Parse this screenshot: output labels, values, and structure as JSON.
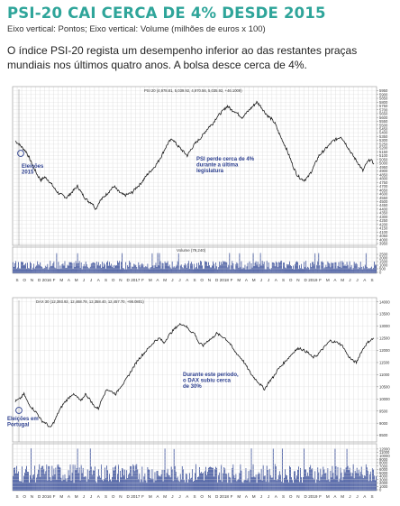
{
  "headline": "PSI-20 CAI CERCA DE 4% DESDE 2015",
  "axis_note": "Eixo vertical: Pontos; Eixo vertical: Volume (milhões de euros x 100)",
  "lead": "O índice PSI-20 regista um desempenho inferior ao das restantes praças mundiais nos últimos quatro anos. A bolsa desce cerca de 4%.",
  "colors": {
    "headline": "#2fa59a",
    "line": "#111111",
    "volume": "#3a4f9a",
    "annotation": "#2c3f8f",
    "grid": "#d9d9d9"
  },
  "chart_data": [
    {
      "type": "line",
      "title": "PSI 20 (4,978.81, 5,039.92, 4,970.56, 5,035.92, +46.1009)",
      "x_tick_labels": [
        "S",
        "O",
        "N",
        "D",
        "2016",
        "F",
        "M",
        "A",
        "M",
        "J",
        "J",
        "A",
        "S",
        "O",
        "N",
        "D",
        "2017",
        "F",
        "M",
        "A",
        "M",
        "J",
        "J",
        "A",
        "S",
        "O",
        "N",
        "D",
        "2018",
        "F",
        "M",
        "A",
        "M",
        "J",
        "J",
        "A",
        "S",
        "O",
        "N",
        "D",
        "2019",
        "F",
        "M",
        "A",
        "M",
        "J",
        "J",
        "A",
        "S"
      ],
      "y_ticks": [
        3950,
        4000,
        4050,
        4100,
        4150,
        4200,
        4250,
        4300,
        4350,
        4400,
        4450,
        4500,
        4550,
        4600,
        4650,
        4700,
        4750,
        4800,
        4850,
        4900,
        4950,
        5000,
        5050,
        5100,
        5150,
        5200,
        5250,
        5300,
        5350,
        5400,
        5450,
        5500,
        5550,
        5600,
        5650,
        5700,
        5750,
        5800,
        5850,
        5900,
        5950
      ],
      "ylim": [
        3950,
        5980
      ],
      "series": [
        {
          "values": [
            5290,
            5250,
            5200,
            5150,
            5050,
            4950,
            4850,
            4780,
            4820,
            4780,
            4720,
            4650,
            4600,
            4580,
            4550,
            4600,
            4650,
            4700,
            4620,
            4550,
            4500,
            4480,
            4400,
            4500,
            4550,
            4600,
            4650,
            4700,
            4640,
            4600,
            4580,
            4600,
            4620,
            4680,
            4720,
            4780,
            4850,
            4900,
            4950,
            5020,
            5100,
            5200,
            5280,
            5320,
            5250,
            5200,
            5150,
            5100,
            5180,
            5250,
            5300,
            5350,
            5420,
            5480,
            5520,
            5600,
            5650,
            5700,
            5750,
            5700,
            5680,
            5640,
            5600,
            5650,
            5700,
            5750,
            5800,
            5750,
            5680,
            5620,
            5580,
            5520,
            5400,
            5300,
            5200,
            5080,
            4950,
            4850,
            4800,
            4780,
            4820,
            4900,
            5000,
            5100,
            5150,
            5200,
            5250,
            5300,
            5320,
            5350,
            5280,
            5200,
            5120,
            5050,
            4980,
            4900,
            5000,
            5050,
            5000
          ]
        }
      ],
      "annotations": [
        {
          "lines": [
            "Eleições",
            "2015"
          ]
        },
        {
          "lines": [
            "PSI perde cerca de 4%",
            "durante a última",
            "legislatura"
          ]
        }
      ]
    },
    {
      "type": "bar",
      "title": "Volume (79,240)",
      "y_ticks": [
        0,
        500,
        1000,
        1500,
        2000,
        2500
      ],
      "ylim": [
        0,
        2750
      ]
    },
    {
      "type": "line",
      "title": "DAX 30 (12,393.92, 12,468.78, 12,358.40, 12,457.70, +98.0801)",
      "x_tick_labels": [
        "S",
        "O",
        "N",
        "D",
        "2016",
        "F",
        "M",
        "A",
        "M",
        "J",
        "J",
        "A",
        "S",
        "O",
        "N",
        "D",
        "2017",
        "F",
        "M",
        "A",
        "M",
        "J",
        "J",
        "A",
        "S",
        "O",
        "N",
        "D",
        "2018",
        "F",
        "M",
        "A",
        "M",
        "J",
        "J",
        "A",
        "S",
        "O",
        "N",
        "D",
        "2019",
        "F",
        "M",
        "A",
        "M",
        "J",
        "J",
        "A",
        "S"
      ],
      "y_ticks": [
        8500,
        9000,
        9500,
        10000,
        10500,
        11000,
        11500,
        12000,
        12500,
        13000,
        13500,
        14000
      ],
      "ylim": [
        8300,
        14100
      ],
      "series": [
        {
          "values": [
            9900,
            10000,
            10200,
            9800,
            9600,
            9400,
            9100,
            9000,
            8800,
            9100,
            9500,
            9800,
            10000,
            10200,
            10100,
            9900,
            10200,
            10000,
            9700,
            9600,
            10100,
            10400,
            10300,
            10200,
            10500,
            10700,
            11000,
            11300,
            11600,
            11800,
            12000,
            12200,
            12400,
            12500,
            12300,
            12600,
            12800,
            13000,
            13100,
            13000,
            12800,
            12700,
            12300,
            12200,
            12400,
            12500,
            12700,
            12600,
            12500,
            12300,
            12000,
            11800,
            11600,
            11300,
            11000,
            10800,
            10600,
            10400,
            10700,
            10900,
            11200,
            11400,
            11600,
            11800,
            12000,
            12100,
            12000,
            11900,
            11700,
            11800,
            12000,
            12200,
            12400,
            12350,
            12300,
            12150,
            11800,
            11600,
            11500,
            11900,
            12200,
            12400,
            12500
          ]
        }
      ],
      "annotations": [
        {
          "lines": [
            "Eleições em",
            "Portugal"
          ]
        },
        {
          "lines": [
            "Durante este período,",
            "o DAX subiu cerca",
            "de 30%"
          ]
        }
      ]
    },
    {
      "type": "bar",
      "title": "",
      "y_ticks": [
        0,
        1000,
        2000,
        3000,
        4000,
        5000,
        6000,
        7000,
        8000,
        9000,
        10000,
        11000,
        12000
      ],
      "ylim": [
        0,
        12500
      ]
    }
  ]
}
